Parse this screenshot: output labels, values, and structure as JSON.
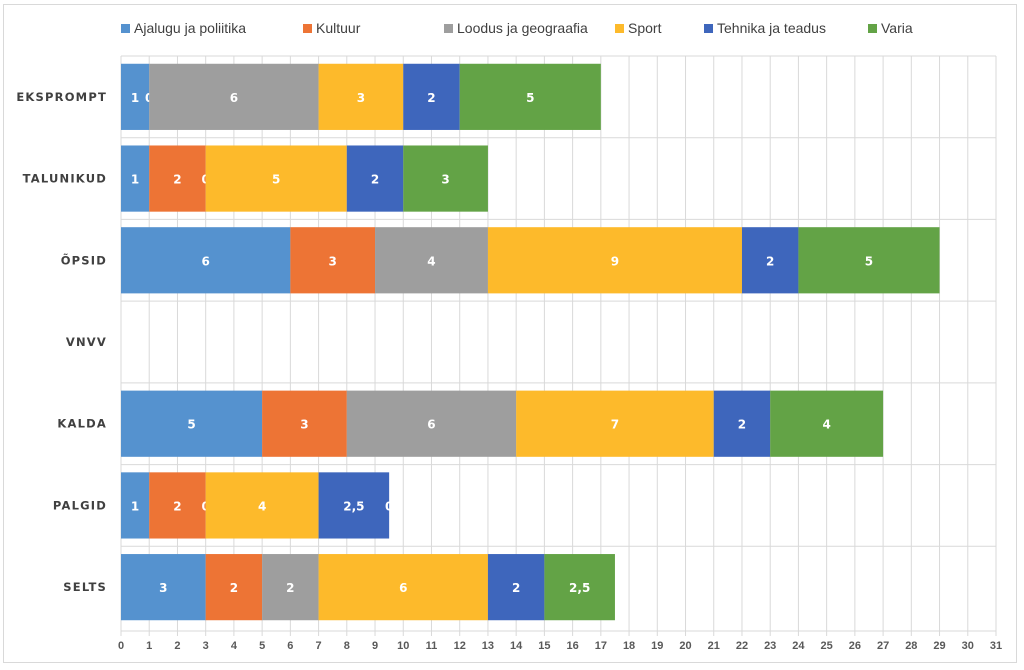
{
  "chart_data": {
    "type": "bar",
    "orientation": "horizontal",
    "stacked": true,
    "title": "",
    "xlabel": "",
    "ylabel": "",
    "xlim": [
      0,
      31
    ],
    "x_ticks": [
      0,
      1,
      2,
      3,
      4,
      5,
      6,
      7,
      8,
      9,
      10,
      11,
      12,
      13,
      14,
      15,
      16,
      17,
      18,
      19,
      20,
      21,
      22,
      23,
      24,
      25,
      26,
      27,
      28,
      29,
      30,
      31
    ],
    "grid": true,
    "legend_position": "top",
    "categories": [
      "EKSPROMPT",
      "TALUNIKUD",
      "ÕPSID",
      "VNVV",
      "KALDA",
      "PALGID",
      "SELTS"
    ],
    "series": [
      {
        "name": "Ajalugu ja poliitika",
        "color": "#5592cf",
        "values": [
          1,
          1,
          6,
          null,
          5,
          1,
          3
        ],
        "labels": [
          "1",
          "1",
          "6",
          "",
          "5",
          "1",
          "3"
        ]
      },
      {
        "name": "Kultuur",
        "color": "#ed7435",
        "values": [
          0,
          2,
          3,
          null,
          3,
          2,
          2
        ],
        "labels": [
          "0",
          "2",
          "3",
          "",
          "3",
          "2",
          "2"
        ]
      },
      {
        "name": "Loodus ja geograafia",
        "color": "#9e9e9e",
        "values": [
          6,
          0,
          4,
          null,
          6,
          0,
          2
        ],
        "labels": [
          "6",
          "0",
          "4",
          "",
          "6",
          "0",
          "2"
        ]
      },
      {
        "name": "Sport",
        "color": "#fdba2b",
        "values": [
          3,
          5,
          9,
          null,
          7,
          4,
          6
        ],
        "labels": [
          "3",
          "5",
          "9",
          "",
          "7",
          "4",
          "6"
        ]
      },
      {
        "name": "Tehnika ja teadus",
        "color": "#3e66bc",
        "values": [
          2,
          2,
          2,
          null,
          2,
          2.5,
          2
        ],
        "labels": [
          "2",
          "2",
          "2",
          "",
          "2",
          "2,5",
          "2"
        ]
      },
      {
        "name": "Varia",
        "color": "#63a346",
        "values": [
          5,
          3,
          5,
          null,
          4,
          0,
          2.5
        ],
        "labels": [
          "5",
          "3",
          "5",
          "",
          "4",
          "0",
          "2,5"
        ]
      }
    ]
  }
}
